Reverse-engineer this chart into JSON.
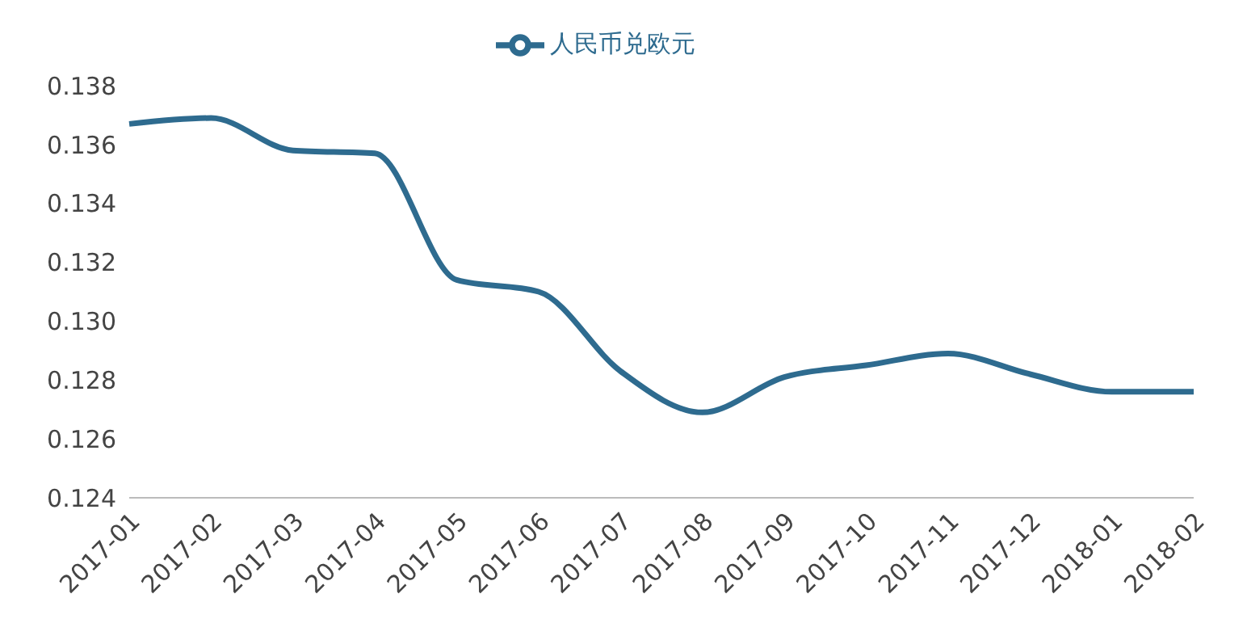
{
  "chart_data": {
    "type": "line",
    "categories": [
      "2017-01",
      "2017-02",
      "2017-03",
      "2017-04",
      "2017-05",
      "2017-06",
      "2017-07",
      "2017-08",
      "2017-09",
      "2017-10",
      "2017-11",
      "2017-12",
      "2018-01",
      "2018-02"
    ],
    "series": [
      {
        "name": "人民币兑欧元",
        "color": "#2e6b8f",
        "values": [
          0.1367,
          0.1369,
          0.1358,
          0.1357,
          0.1314,
          0.131,
          0.1283,
          0.1269,
          0.1281,
          0.1285,
          0.1289,
          0.1282,
          0.1276,
          0.1276
        ]
      }
    ],
    "ylim": [
      0.124,
      0.138
    ],
    "yticks": [
      {
        "value": 0.124,
        "label": "0.124"
      },
      {
        "value": 0.126,
        "label": "0.126"
      },
      {
        "value": 0.128,
        "label": "0.128"
      },
      {
        "value": 0.13,
        "label": "0.130"
      },
      {
        "value": 0.132,
        "label": "0.132"
      },
      {
        "value": 0.134,
        "label": "0.134"
      },
      {
        "value": 0.136,
        "label": "0.136"
      },
      {
        "value": 0.138,
        "label": "0.138"
      }
    ],
    "grid": false,
    "legend": "top",
    "marker": "none",
    "line_style": "solid"
  }
}
